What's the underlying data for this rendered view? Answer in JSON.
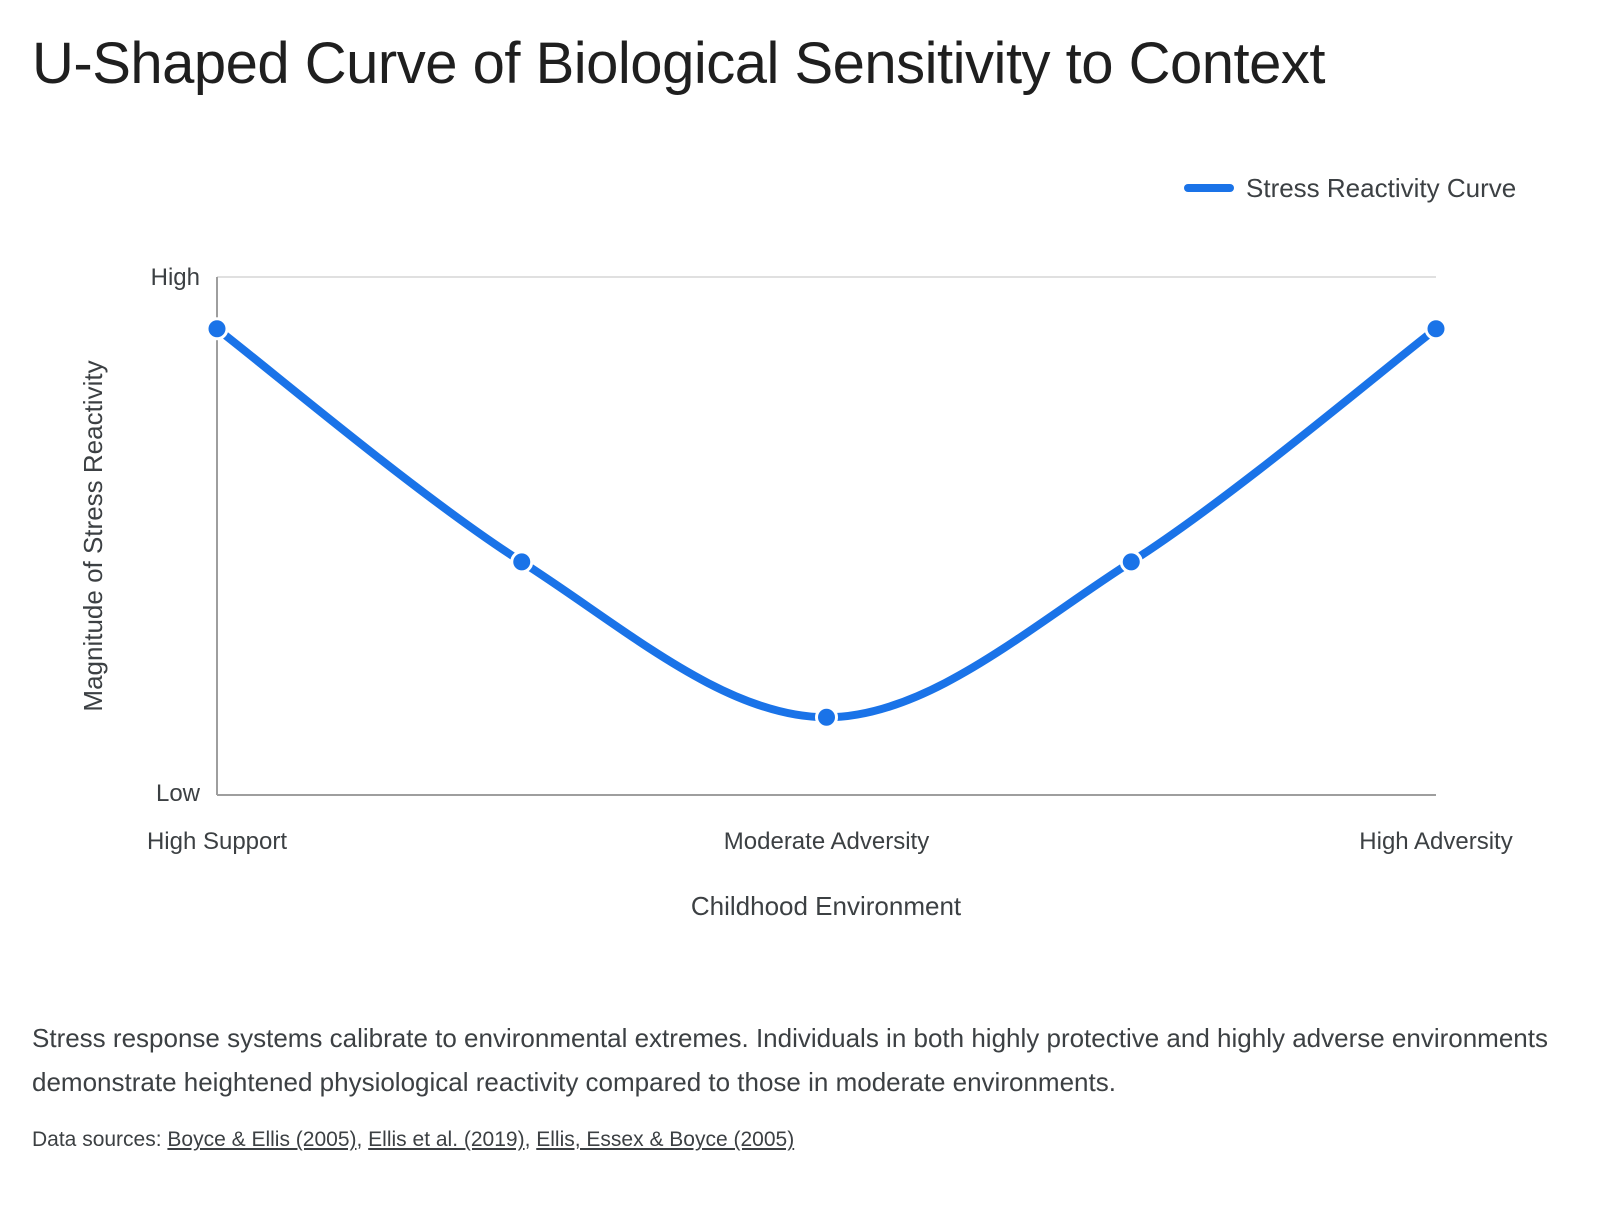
{
  "chart_data": {
    "type": "line",
    "title": "U-Shaped Curve of Biological Sensitivity to Context",
    "xlabel": "Childhood Environment",
    "ylabel": "Magnitude of Stress Reactivity",
    "x_categories": [
      "High Support",
      "",
      "Moderate Adversity",
      "",
      "High Adversity"
    ],
    "y_tick_labels": {
      "low": "Low",
      "high": "High"
    },
    "ylim": [
      0,
      10
    ],
    "legend": {
      "position": "top-right"
    },
    "grid": false,
    "smooth": true,
    "series": [
      {
        "name": "Stress Reactivity Curve",
        "color": "#1a73e8",
        "values": [
          9,
          4.5,
          1.5,
          4.5,
          9
        ]
      }
    ]
  },
  "description": "Stress response systems calibrate to environmental extremes. Individuals in both highly protective and highly adverse environments demonstrate heightened physiological reactivity compared to those in moderate environments.",
  "sources": {
    "prefix": "Data sources: ",
    "links": [
      "Boyce & Ellis (2005)",
      "Ellis et al. (2019)",
      "Ellis, Essex & Boyce (2005)"
    ],
    "separator": ", "
  }
}
